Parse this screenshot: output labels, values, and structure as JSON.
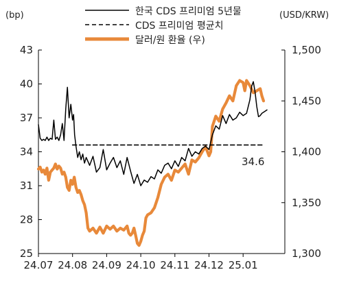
{
  "chart_data": {
    "type": "line",
    "title": "",
    "left_unit": "(bp)",
    "right_unit": "(USD/KRW)",
    "legend_position": "top-right",
    "grid": false,
    "x_ticks": [
      "24.07",
      "24.08",
      "24.09",
      "24.10",
      "24.11",
      "24.12",
      "25.01"
    ],
    "y_left": {
      "ticks": [
        "43",
        "40",
        "37",
        "34",
        "31",
        "28",
        "25"
      ],
      "lim": [
        25,
        43
      ]
    },
    "y_right": {
      "ticks": [
        "1,500",
        "1,450",
        "1,400",
        "1,350",
        "1,300"
      ],
      "lim": [
        1300,
        1500
      ]
    },
    "series": [
      {
        "name": "한국 CDS 프리미엄 5년물",
        "axis": "left",
        "color": "#000000",
        "style": "solid",
        "x": [
          0.0,
          0.05,
          0.1,
          0.15,
          0.2,
          0.25,
          0.3,
          0.35,
          0.4,
          0.45,
          0.5,
          0.55,
          0.6,
          0.65,
          0.7,
          0.75,
          0.8,
          0.85,
          0.9,
          0.95,
          1.0,
          1.03,
          1.06,
          1.1,
          1.15,
          1.2,
          1.25,
          1.3,
          1.35,
          1.4,
          1.5,
          1.6,
          1.7,
          1.8,
          1.9,
          2.0,
          2.1,
          2.2,
          2.3,
          2.4,
          2.5,
          2.6,
          2.7,
          2.8,
          2.9,
          3.0,
          3.1,
          3.2,
          3.3,
          3.4,
          3.5,
          3.6,
          3.7,
          3.8,
          3.9,
          4.0,
          4.1,
          4.2,
          4.3,
          4.4,
          4.5,
          4.6,
          4.7,
          4.8,
          4.9,
          5.0,
          5.1,
          5.2,
          5.3,
          5.4,
          5.5,
          5.6,
          5.7,
          5.8,
          5.9,
          6.0,
          6.1,
          6.2,
          6.25,
          6.3,
          6.35,
          6.4,
          6.45,
          6.5,
          6.55,
          6.6,
          6.65,
          6.7
        ],
        "values": [
          36.4,
          35.2,
          35.0,
          35.1,
          35.0,
          35.3,
          35.0,
          35.2,
          35.1,
          36.8,
          35.1,
          35.3,
          35.0,
          35.5,
          36.5,
          35.0,
          37.8,
          39.7,
          37.0,
          38.2,
          36.8,
          37.3,
          35.5,
          34.5,
          33.5,
          34.0,
          33.3,
          33.8,
          33.0,
          33.5,
          32.8,
          33.6,
          32.2,
          32.6,
          34.2,
          32.4,
          33.0,
          33.5,
          32.6,
          33.2,
          32.0,
          33.5,
          32.3,
          31.2,
          32.0,
          31.0,
          31.5,
          31.3,
          31.8,
          31.6,
          32.4,
          32.1,
          32.8,
          33.0,
          32.5,
          33.2,
          32.7,
          33.5,
          33.2,
          34.3,
          33.6,
          34.0,
          33.8,
          34.3,
          34.5,
          34.2,
          35.5,
          36.3,
          36.0,
          37.2,
          36.5,
          37.3,
          36.8,
          37.0,
          37.5,
          37.2,
          37.4,
          38.6,
          39.8,
          40.2,
          39.3,
          38.0,
          37.1,
          37.2,
          37.4,
          37.5,
          37.6,
          37.7
        ]
      },
      {
        "name": "CDS 프리미엄 평균치",
        "axis": "left",
        "color": "#000000",
        "style": "dashed",
        "x": [
          1.0,
          6.6
        ],
        "values": [
          34.6,
          34.6
        ]
      },
      {
        "name": "달러/원 환율 (우)",
        "axis": "right",
        "color": "#e8893a",
        "style": "solid-thick",
        "x": [
          0.0,
          0.05,
          0.1,
          0.15,
          0.2,
          0.25,
          0.3,
          0.35,
          0.4,
          0.45,
          0.5,
          0.55,
          0.6,
          0.65,
          0.7,
          0.75,
          0.8,
          0.85,
          0.9,
          0.95,
          1.0,
          1.05,
          1.1,
          1.15,
          1.2,
          1.25,
          1.3,
          1.35,
          1.4,
          1.45,
          1.5,
          1.6,
          1.7,
          1.8,
          1.9,
          2.0,
          2.1,
          2.2,
          2.3,
          2.4,
          2.5,
          2.6,
          2.65,
          2.7,
          2.75,
          2.8,
          2.85,
          2.9,
          2.95,
          3.0,
          3.05,
          3.1,
          3.15,
          3.2,
          3.3,
          3.4,
          3.5,
          3.6,
          3.7,
          3.8,
          3.9,
          4.0,
          4.1,
          4.2,
          4.3,
          4.4,
          4.5,
          4.6,
          4.7,
          4.8,
          4.9,
          5.0,
          5.05,
          5.1,
          5.2,
          5.3,
          5.4,
          5.5,
          5.6,
          5.7,
          5.8,
          5.9,
          6.0,
          6.05,
          6.1,
          6.2,
          6.3,
          6.4,
          6.5,
          6.55,
          6.6
        ],
        "values": [
          1383,
          1385,
          1380,
          1382,
          1378,
          1384,
          1372,
          1380,
          1382,
          1384,
          1388,
          1383,
          1386,
          1384,
          1378,
          1380,
          1375,
          1365,
          1362,
          1372,
          1368,
          1375,
          1365,
          1360,
          1362,
          1358,
          1352,
          1348,
          1340,
          1325,
          1322,
          1325,
          1320,
          1326,
          1320,
          1327,
          1324,
          1327,
          1322,
          1325,
          1323,
          1327,
          1320,
          1318,
          1320,
          1325,
          1318,
          1310,
          1308,
          1312,
          1318,
          1322,
          1335,
          1338,
          1340,
          1345,
          1355,
          1368,
          1375,
          1378,
          1372,
          1382,
          1380,
          1384,
          1388,
          1378,
          1392,
          1390,
          1394,
          1400,
          1405,
          1396,
          1400,
          1425,
          1435,
          1430,
          1442,
          1448,
          1455,
          1450,
          1465,
          1470,
          1468,
          1460,
          1470,
          1465,
          1458,
          1460,
          1462,
          1455,
          1450
        ]
      }
    ],
    "annotations": [
      {
        "text": "34.6"
      }
    ]
  }
}
